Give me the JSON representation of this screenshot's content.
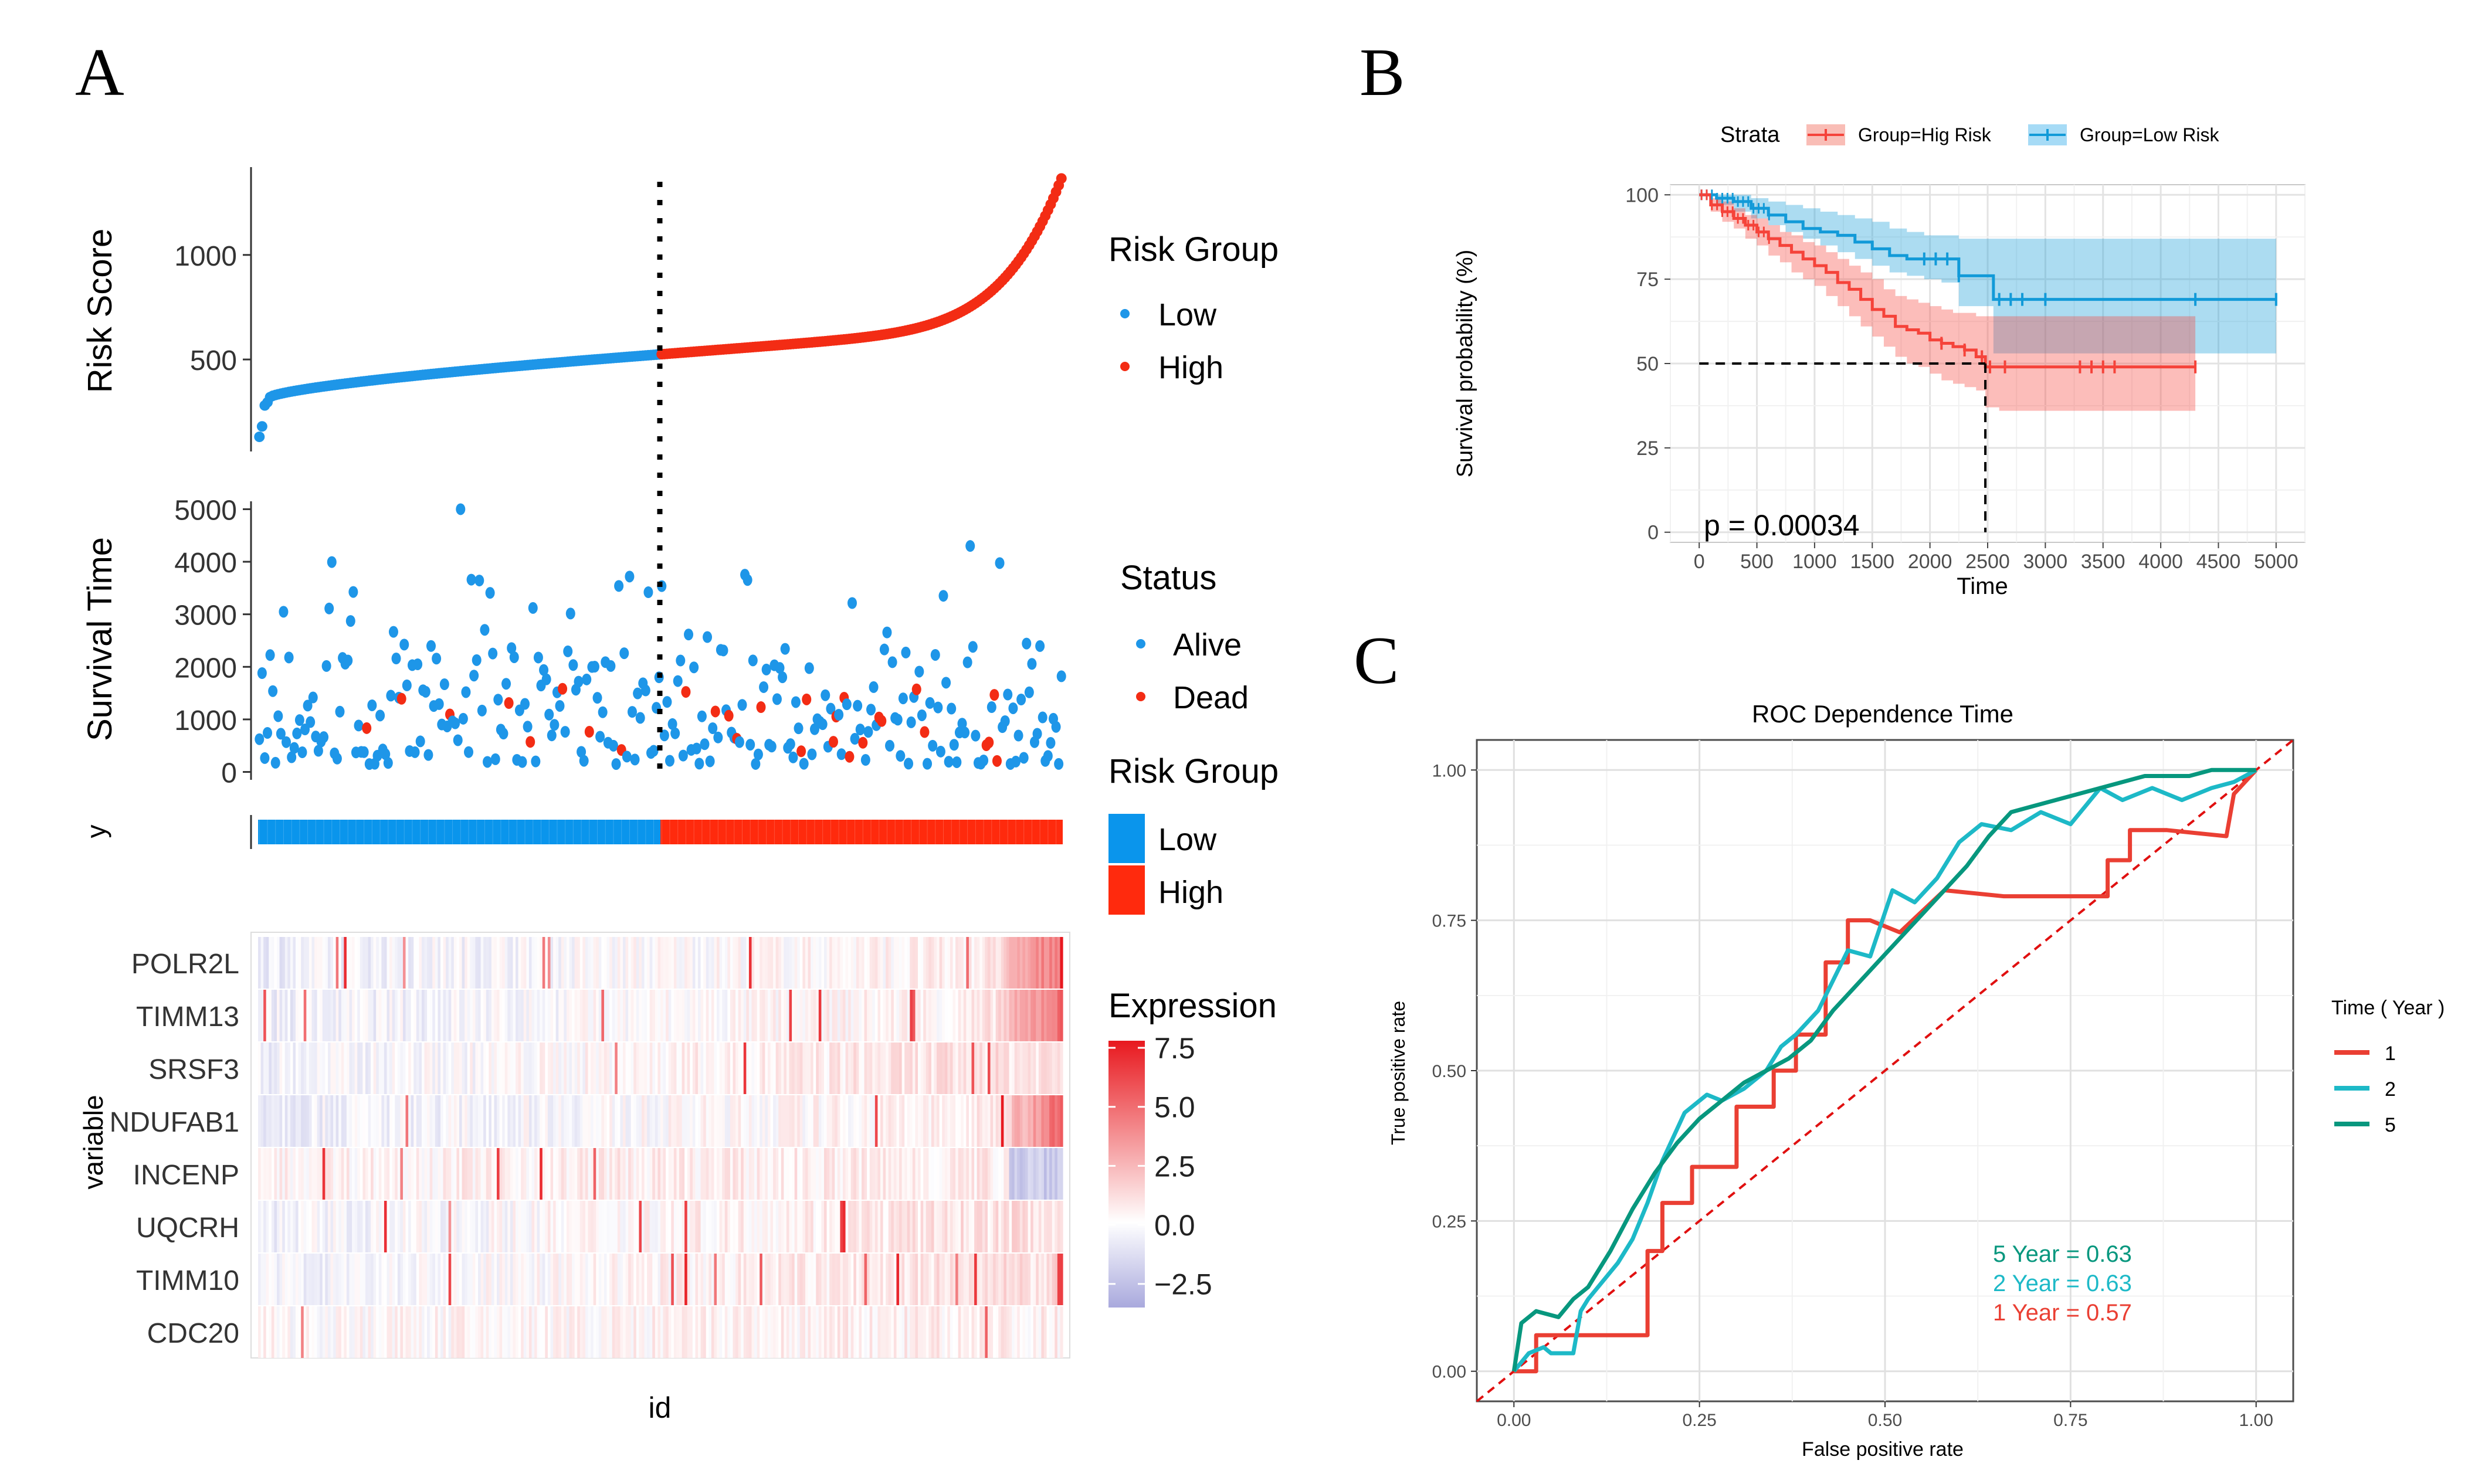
{
  "panels": {
    "a": "A",
    "b": "B",
    "c": "C"
  },
  "colors": {
    "low": "#1E96E8",
    "high": "#F32C14",
    "heat_low": "#A9A9DD",
    "heat_high": "#E8191F",
    "km_high": "#F5433A",
    "km_low": "#129AD8",
    "roc_1": "#EA3F33",
    "roc_2": "#1DB9C7",
    "roc_5": "#07977E",
    "diag": "#E01010"
  },
  "chart_data": [
    {
      "type": "scatter",
      "name": "risk-score",
      "ylabel": "Risk Score",
      "yticks": [
        "500",
        "1000"
      ],
      "ytick_values": [
        500,
        1000
      ],
      "ylim": [
        60,
        1420
      ],
      "n_samples": 300,
      "cutoff_index": 150,
      "low_range": [
        130,
        525
      ],
      "high_range": [
        525,
        1400
      ],
      "legend": {
        "title": "Risk Group",
        "items": [
          "Low",
          "High"
        ]
      }
    },
    {
      "type": "scatter",
      "name": "survival-time",
      "ylabel": "Survival Time",
      "yticks": [
        "0",
        "1000",
        "2000",
        "3000",
        "4000",
        "5000"
      ],
      "ytick_values": [
        0,
        1000,
        2000,
        3000,
        4000,
        5000
      ],
      "ylim": [
        -150,
        5150
      ],
      "n_samples": 300,
      "alive_count": 270,
      "dead_count": 30,
      "max_value": 5000,
      "legend": {
        "title": "Status",
        "items": [
          "Alive",
          "Dead"
        ]
      }
    },
    {
      "type": "bar",
      "name": "risk-group-strip",
      "ylabel": "y",
      "groups": [
        {
          "name": "Low",
          "count": 150
        },
        {
          "name": "High",
          "count": 150
        }
      ],
      "legend": {
        "title": "Risk Group",
        "items": [
          "Low",
          "High"
        ]
      }
    },
    {
      "type": "heatmap",
      "name": "expression-heatmap",
      "xlabel": "id",
      "ylabel": "variable",
      "rows": [
        "POLR2L",
        "TIMM13",
        "SRSF3",
        "NDUFAB1",
        "INCENP",
        "UQCRH",
        "TIMM10",
        "CDC20"
      ],
      "n_columns": 300,
      "range": [
        -3.5,
        7.8
      ],
      "legend": {
        "title": "Expression",
        "ticks": [
          "7.5",
          "5.0",
          "2.5",
          "0.0",
          "−2.5"
        ],
        "tick_values": [
          7.5,
          5.0,
          2.5,
          0.0,
          -2.5
        ]
      }
    },
    {
      "type": "line",
      "name": "kaplan-meier",
      "xlabel": "Time",
      "ylabel": "Survival probability (%)",
      "xticks": [
        "0",
        "500",
        "1000",
        "1500",
        "2000",
        "2500",
        "3000",
        "3500",
        "4000",
        "4500",
        "5000"
      ],
      "xtick_values": [
        0,
        500,
        1000,
        1500,
        2000,
        2500,
        3000,
        3500,
        4000,
        4500,
        5000
      ],
      "yticks": [
        "0",
        "25",
        "50",
        "75",
        "100"
      ],
      "ytick_values": [
        0,
        25,
        50,
        75,
        100
      ],
      "xlim": [
        -250,
        5250
      ],
      "ylim": [
        -3,
        103
      ],
      "legend_title": "Strata",
      "pvalue": "p = 0.00034",
      "median_time": 2480,
      "series": [
        {
          "name": "Group=Hig Risk",
          "x": [
            0,
            100,
            200,
            300,
            400,
            500,
            600,
            700,
            800,
            900,
            1000,
            1100,
            1200,
            1300,
            1400,
            1500,
            1600,
            1700,
            1800,
            1900,
            2000,
            2100,
            2200,
            2300,
            2400,
            2480,
            2600,
            4300
          ],
          "y": [
            100,
            97,
            95,
            93,
            91,
            89,
            87,
            85,
            83,
            81,
            79,
            77,
            74,
            72,
            69,
            66,
            64,
            61,
            60,
            59,
            57,
            56,
            55,
            54,
            52,
            49,
            49,
            49
          ],
          "lower": [
            100,
            95,
            92,
            90,
            87,
            85,
            82,
            80,
            77,
            75,
            73,
            70,
            67,
            64,
            61,
            58,
            55,
            52,
            50,
            49,
            47,
            45,
            44,
            43,
            42,
            37,
            36,
            36
          ],
          "upper": [
            100,
            99,
            98,
            96,
            94,
            93,
            91,
            89,
            88,
            86,
            85,
            83,
            81,
            79,
            77,
            75,
            72,
            70,
            69,
            68,
            67,
            66,
            65,
            65,
            64,
            64,
            64,
            64
          ],
          "censor": [
            2100,
            2300,
            2450,
            2520,
            2650,
            3300,
            3400,
            3500,
            3600,
            4300
          ]
        },
        {
          "name": "Group=Low Risk",
          "x": [
            0,
            150,
            300,
            450,
            600,
            750,
            900,
            1050,
            1200,
            1350,
            1500,
            1650,
            1800,
            1950,
            2100,
            2250,
            2550,
            5000
          ],
          "y": [
            100,
            99,
            98,
            96,
            94,
            92,
            90,
            89,
            88,
            86,
            84,
            82,
            81,
            81,
            81,
            76,
            69,
            69
          ],
          "lower": [
            100,
            97,
            95,
            93,
            91,
            89,
            87,
            85,
            83,
            81,
            79,
            77,
            76,
            75,
            74,
            67,
            53,
            53
          ],
          "upper": [
            100,
            100,
            100,
            99,
            98,
            97,
            96,
            95,
            94,
            93,
            92,
            90,
            89,
            88,
            88,
            87,
            87,
            87
          ],
          "censor": [
            1950,
            2050,
            2150,
            2250,
            2600,
            2700,
            2800,
            3000,
            4300,
            5000
          ]
        }
      ]
    },
    {
      "type": "line",
      "name": "roc",
      "title": "ROC Dependence Time",
      "xlabel": "False positive rate",
      "ylabel": "True positive rate",
      "xticks": [
        "0.00",
        "0.25",
        "0.50",
        "0.75",
        "1.00"
      ],
      "xtick_values": [
        0,
        0.25,
        0.5,
        0.75,
        1.0
      ],
      "yticks": [
        "0.00",
        "0.25",
        "0.50",
        "0.75",
        "1.00"
      ],
      "ytick_values": [
        0,
        0.25,
        0.5,
        0.75,
        1.0
      ],
      "xlim": [
        -0.05,
        1.05
      ],
      "ylim": [
        -0.05,
        1.05
      ],
      "legend_title": "Time ( Year )",
      "annotations": [
        "5 Year  =  0.63",
        "2 Year  =  0.63",
        "1 Year  =  0.57"
      ],
      "series": [
        {
          "name": "1",
          "auc": 0.57,
          "x": [
            0,
            0.01,
            0.03,
            0.03,
            0.08,
            0.08,
            0.18,
            0.18,
            0.2,
            0.2,
            0.24,
            0.24,
            0.26,
            0.26,
            0.3,
            0.3,
            0.35,
            0.35,
            0.38,
            0.38,
            0.42,
            0.42,
            0.45,
            0.45,
            0.48,
            0.52,
            0.58,
            0.66,
            0.7,
            0.75,
            0.8,
            0.8,
            0.83,
            0.83,
            0.88,
            0.96,
            0.97,
            1.0
          ],
          "y": [
            0,
            0,
            0,
            0.06,
            0.06,
            0.06,
            0.06,
            0.2,
            0.2,
            0.28,
            0.28,
            0.34,
            0.34,
            0.34,
            0.34,
            0.44,
            0.44,
            0.5,
            0.5,
            0.56,
            0.56,
            0.68,
            0.68,
            0.75,
            0.75,
            0.73,
            0.8,
            0.79,
            0.79,
            0.79,
            0.79,
            0.85,
            0.85,
            0.9,
            0.9,
            0.89,
            0.96,
            1.0
          ]
        },
        {
          "name": "2",
          "auc": 0.63,
          "x": [
            0,
            0.02,
            0.04,
            0.05,
            0.08,
            0.09,
            0.1,
            0.14,
            0.16,
            0.18,
            0.2,
            0.23,
            0.26,
            0.28,
            0.31,
            0.34,
            0.36,
            0.38,
            0.41,
            0.45,
            0.48,
            0.51,
            0.54,
            0.57,
            0.6,
            0.63,
            0.67,
            0.71,
            0.75,
            0.79,
            0.82,
            0.86,
            0.9,
            0.94,
            0.97,
            1.0
          ],
          "y": [
            0,
            0.03,
            0.04,
            0.03,
            0.03,
            0.1,
            0.12,
            0.18,
            0.22,
            0.28,
            0.35,
            0.43,
            0.46,
            0.45,
            0.47,
            0.5,
            0.54,
            0.56,
            0.6,
            0.7,
            0.69,
            0.8,
            0.78,
            0.82,
            0.88,
            0.91,
            0.9,
            0.93,
            0.91,
            0.97,
            0.95,
            0.97,
            0.95,
            0.97,
            0.98,
            1.0
          ]
        },
        {
          "name": "5",
          "auc": 0.63,
          "x": [
            0,
            0.01,
            0.03,
            0.06,
            0.08,
            0.1,
            0.13,
            0.16,
            0.19,
            0.22,
            0.25,
            0.28,
            0.31,
            0.34,
            0.37,
            0.4,
            0.43,
            0.46,
            0.49,
            0.52,
            0.55,
            0.58,
            0.61,
            0.64,
            0.67,
            0.7,
            0.73,
            0.76,
            0.79,
            0.82,
            0.85,
            0.88,
            0.91,
            0.94,
            0.97,
            1.0
          ],
          "y": [
            0,
            0.08,
            0.1,
            0.09,
            0.12,
            0.14,
            0.2,
            0.27,
            0.33,
            0.38,
            0.42,
            0.45,
            0.48,
            0.5,
            0.52,
            0.55,
            0.6,
            0.64,
            0.68,
            0.72,
            0.76,
            0.8,
            0.84,
            0.89,
            0.93,
            0.94,
            0.95,
            0.96,
            0.97,
            0.98,
            0.99,
            0.99,
            0.99,
            1.0,
            1.0,
            1.0
          ]
        }
      ]
    }
  ]
}
